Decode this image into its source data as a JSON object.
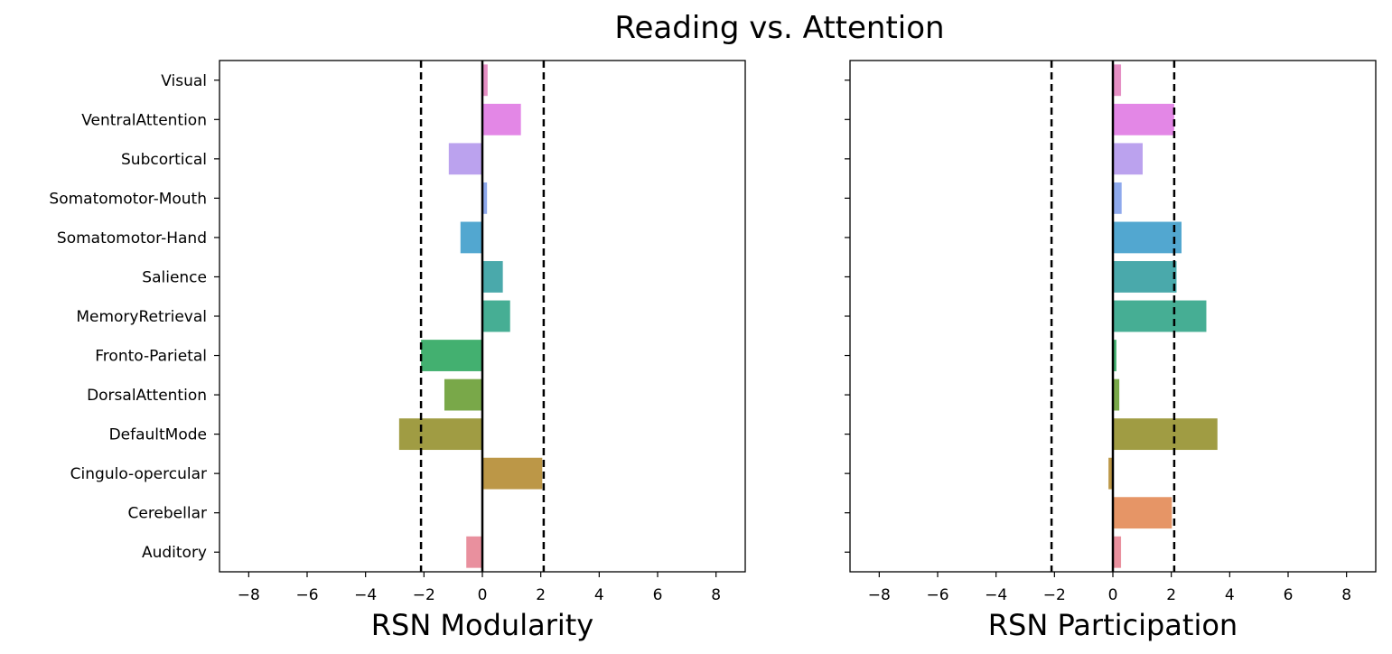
{
  "title": "Reading vs. Attention",
  "chart_data": [
    {
      "type": "bar",
      "orientation": "horizontal",
      "xlabel": "RSN Modularity",
      "xlim": [
        -9,
        9
      ],
      "xticks": [
        -8,
        -6,
        -4,
        -2,
        0,
        2,
        4,
        6,
        8
      ],
      "reference_lines": {
        "solid": [
          0
        ],
        "dashed": [
          -2.1,
          2.1
        ]
      },
      "categories": [
        "Visual",
        "VentralAttention",
        "Subcortical",
        "Somatomotor-Mouth",
        "Somatomotor-Hand",
        "Salience",
        "MemoryRetrieval",
        "Fronto-Parietal",
        "DorsalAttention",
        "DefaultMode",
        "Cingulo-opercular",
        "Cerebellar",
        "Auditory"
      ],
      "values": [
        0.18,
        1.32,
        -1.15,
        0.16,
        -0.75,
        0.7,
        0.95,
        -2.1,
        -1.3,
        -2.85,
        2.05,
        0.0,
        -0.55
      ],
      "show_yticklabels": true
    },
    {
      "type": "bar",
      "orientation": "horizontal",
      "xlabel": "RSN Participation",
      "xlim": [
        -9,
        9
      ],
      "xticks": [
        -8,
        -6,
        -4,
        -2,
        0,
        2,
        4,
        6,
        8
      ],
      "reference_lines": {
        "solid": [
          0
        ],
        "dashed": [
          -2.1,
          2.1
        ]
      },
      "categories": [
        "Visual",
        "VentralAttention",
        "Subcortical",
        "Somatomotor-Mouth",
        "Somatomotor-Hand",
        "Salience",
        "MemoryRetrieval",
        "Fronto-Parietal",
        "DorsalAttention",
        "DefaultMode",
        "Cingulo-opercular",
        "Cerebellar",
        "Auditory"
      ],
      "values": [
        0.28,
        2.1,
        1.02,
        0.3,
        2.35,
        2.18,
        3.2,
        0.12,
        0.22,
        3.58,
        -0.15,
        2.02,
        0.28
      ],
      "show_yticklabels": false
    }
  ],
  "bar_colors": [
    "#e58fc4",
    "#e387e6",
    "#bba2ee",
    "#8ea9ec",
    "#52a7d0",
    "#4aa9ab",
    "#46ae94",
    "#43b070",
    "#79a849",
    "#a09c43",
    "#bc9747",
    "#e69566",
    "#e9909e"
  ]
}
